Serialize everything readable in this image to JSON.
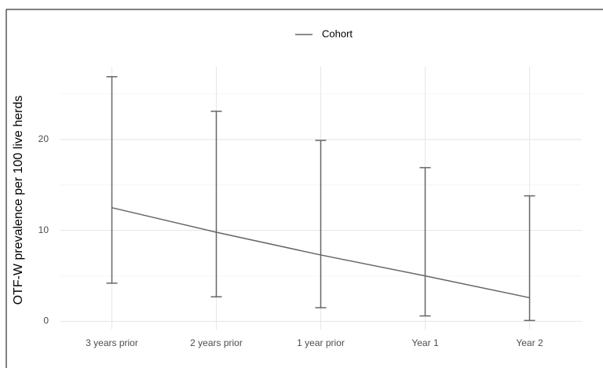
{
  "chart_data": {
    "type": "line",
    "y_label": "OTF-W prevalence per 100 live herds",
    "categories": [
      "3 years prior",
      "2 years prior",
      "1 year prior",
      "Year 1",
      "Year 2"
    ],
    "series": [
      {
        "name": "Cohort",
        "color": "#666666",
        "values": [
          12.5,
          9.8,
          7.3,
          5.0,
          2.6
        ],
        "lower": [
          4.2,
          2.7,
          1.5,
          0.6,
          0.1
        ],
        "upper": [
          26.9,
          23.1,
          19.9,
          16.9,
          13.8
        ]
      }
    ],
    "ylim": [
      -0.9,
      28.0
    ],
    "yticks": [
      0,
      10,
      20
    ],
    "minor_yticks": [
      5,
      15,
      25
    ],
    "grid": true,
    "legend": "top"
  }
}
